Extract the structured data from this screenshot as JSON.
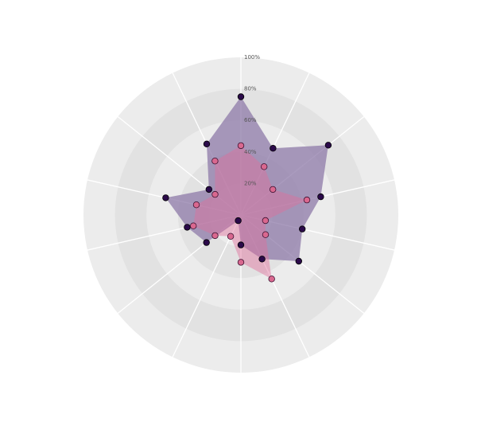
{
  "chart_data": {
    "type": "radar",
    "categories": [
      "",
      "",
      "",
      "",
      "",
      "",
      "",
      "",
      "",
      "",
      "",
      "",
      "",
      ""
    ],
    "r_ticks": [
      "20%",
      "40%",
      "60%",
      "80%",
      "100%"
    ],
    "r_range": [
      0,
      100
    ],
    "grid": true,
    "series": [
      {
        "values": [
          75,
          47,
          71,
          52,
          40,
          47,
          31,
          19,
          4,
          28,
          35,
          49,
          26,
          50
        ],
        "color": "#2b0a4a",
        "fill": "#8e7aa8",
        "fill_opacity": 0.75
      },
      {
        "values": [
          44,
          34,
          26,
          43,
          16,
          20,
          45,
          30,
          15,
          21,
          31,
          29,
          21,
          38
        ],
        "color": "#d9688f",
        "fill": "#e06e9c",
        "fill_opacity": 0.45
      }
    ]
  },
  "colors": {
    "band_outer": "#ececec",
    "band_inner": "#e2e2e2",
    "spoke": "#ffffff"
  }
}
